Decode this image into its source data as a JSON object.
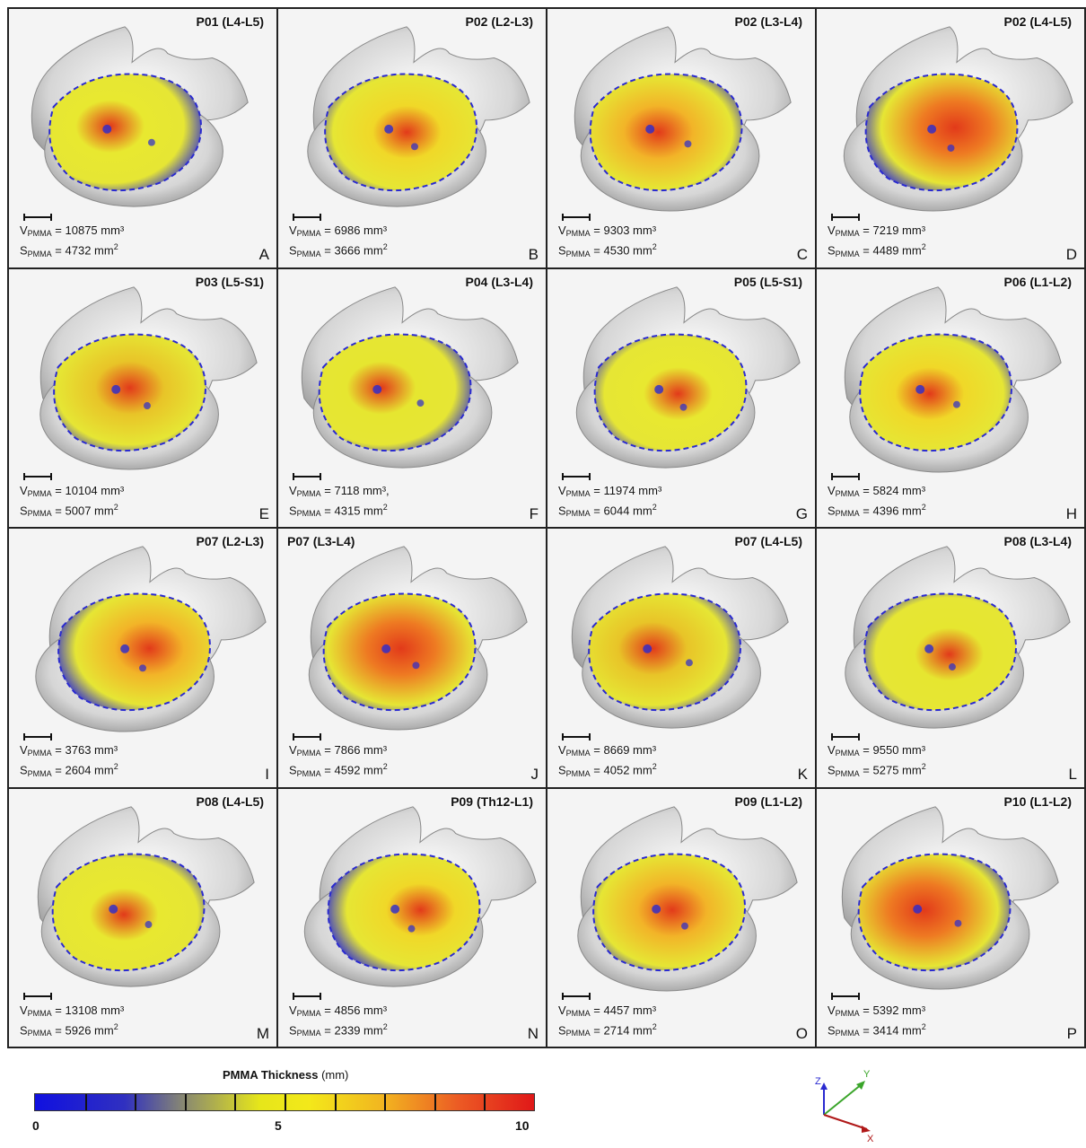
{
  "panels": [
    {
      "title": "P01 (L4-L5)",
      "volume": "10875 mm³",
      "surface": "4732 mm",
      "letter": "A"
    },
    {
      "title": "P02 (L2-L3)",
      "volume": "6986 mm³",
      "surface": "3666 mm",
      "letter": "B"
    },
    {
      "title": "P02 (L3-L4)",
      "volume": "9303 mm³",
      "surface": "4530 mm",
      "letter": "C"
    },
    {
      "title": "P02 (L4-L5)",
      "volume": "7219 mm³",
      "surface": "4489 mm",
      "letter": "D"
    },
    {
      "title": "P03 (L5-S1)",
      "volume": "10104 mm³",
      "surface": "5007 mm",
      "letter": "E"
    },
    {
      "title": "P04 (L3-L4)",
      "volume": "7118 mm³,",
      "surface": "4315 mm",
      "letter": "F"
    },
    {
      "title": "P05 (L5-S1)",
      "volume": "11974 mm³",
      "surface": "6044 mm",
      "letter": "G"
    },
    {
      "title": "P06 (L1-L2)",
      "volume": "5824 mm³",
      "surface": "4396 mm",
      "letter": "H"
    },
    {
      "title": "P07 (L2-L3)",
      "volume": "3763 mm³",
      "surface": "2604 mm",
      "letter": "I"
    },
    {
      "title": "P07 (L3-L4)",
      "volume": "7866 mm³",
      "surface": " 4592 mm",
      "letter": "J"
    },
    {
      "title": "P07 (L4-L5)",
      "volume": "8669 mm³",
      "surface": "4052 mm",
      "letter": "K"
    },
    {
      "title": "P08 (L3-L4)",
      "volume": "9550 mm³",
      "surface": "5275 mm",
      "letter": "L"
    },
    {
      "title": "P08 (L4-L5)",
      "volume": "13108 mm³",
      "surface": "5926 mm",
      "letter": "M"
    },
    {
      "title": "P09 (Th12-L1)",
      "volume": "4856 mm³",
      "surface": "2339 mm",
      "letter": "N"
    },
    {
      "title": "P09 (L1-L2)",
      "volume": "4457 mm³",
      "surface": "2714 mm",
      "letter": "O"
    },
    {
      "title": "P10 (L1-L2)",
      "volume": "5392 mm³",
      "surface": "3414 mm",
      "letter": "P"
    }
  ],
  "labels": {
    "volume_symbol": "V",
    "surface_symbol": "S",
    "subscript": "PMMA",
    "equals": " = ",
    "surface_exponent": "2"
  },
  "legend": {
    "title": "PMMA Thickness",
    "unit": "(mm)",
    "min": "0",
    "mid": "5",
    "max": "10",
    "colors": [
      "#1010e0",
      "#3030c0",
      "#8a8a70",
      "#e6e61a",
      "#f2b420",
      "#ec5a24",
      "#e01818"
    ]
  },
  "axes": {
    "x_label": "X",
    "y_label": "Y",
    "z_label": "Z"
  }
}
